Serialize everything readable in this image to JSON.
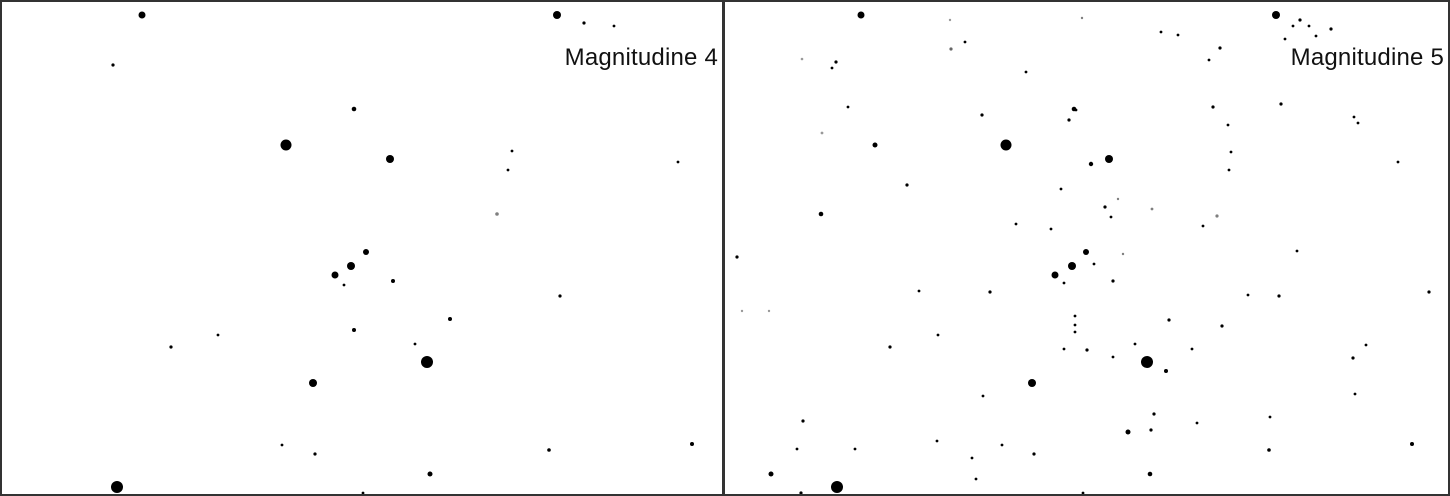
{
  "image": {
    "background_color": "#ffffff",
    "star_color": "#000000",
    "border_color": "#333333"
  },
  "panels": [
    {
      "label": "Magnitudine 4"
    },
    {
      "label": "Magnitudine 5"
    }
  ]
}
